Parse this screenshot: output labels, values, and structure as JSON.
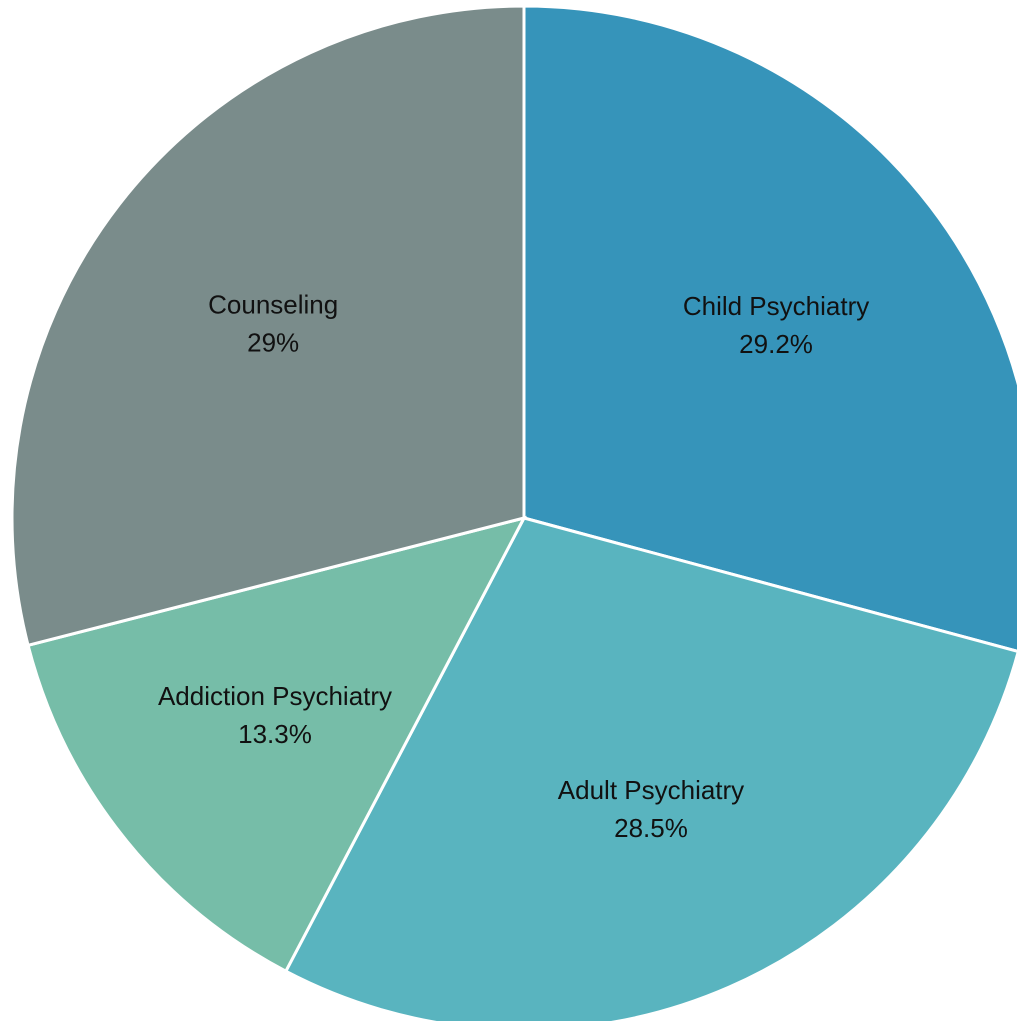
{
  "chart_data": {
    "type": "pie",
    "start_angle_deg": 0,
    "direction": "clockwise",
    "slices": [
      {
        "label": "Child Psychiatry",
        "value": 29.2,
        "value_label": "29.2%",
        "color": "#3694BA"
      },
      {
        "label": "Adult Psychiatry",
        "value": 28.5,
        "value_label": "28.5%",
        "color": "#59B4BF"
      },
      {
        "label": "Addiction Psychiatry",
        "value": 13.3,
        "value_label": "13.3%",
        "color": "#76BDA8"
      },
      {
        "label": "Counseling",
        "value": 29,
        "value_label": "29%",
        "color": "#7A8C8B"
      }
    ]
  }
}
